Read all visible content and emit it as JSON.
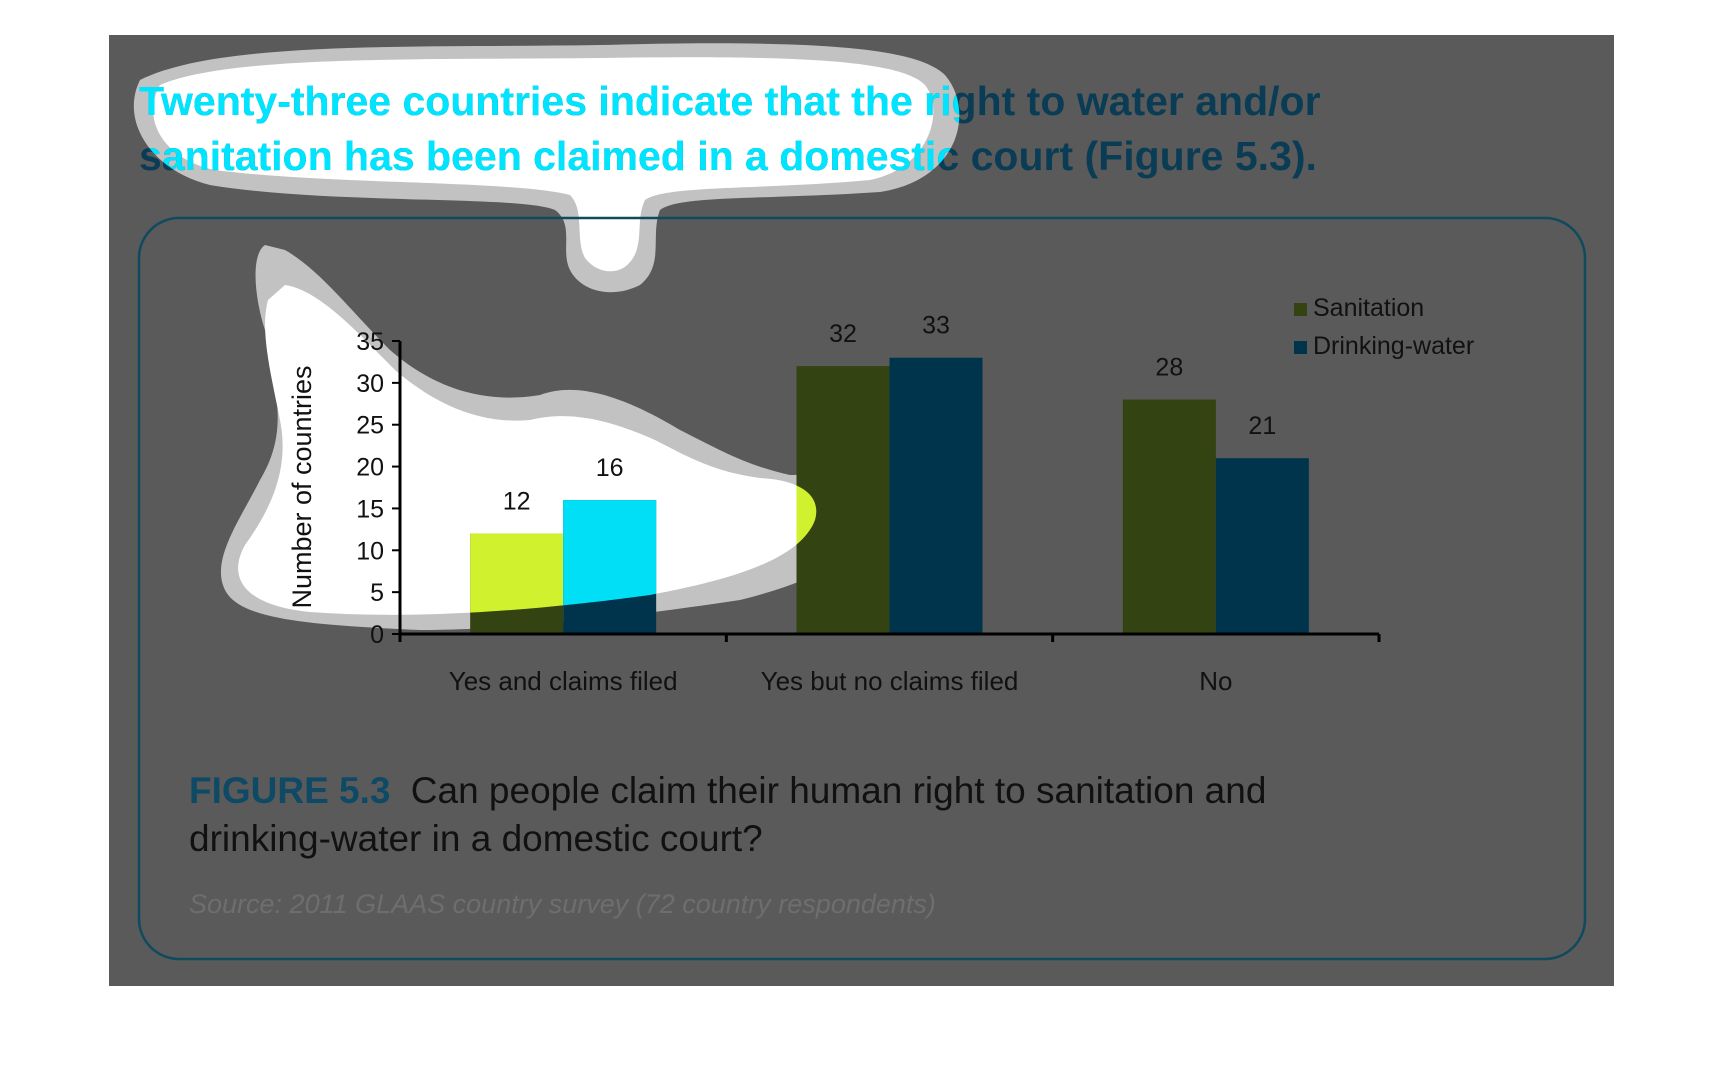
{
  "headline": {
    "line1": "Twenty-three countries indicate that the right to water and/or",
    "line2": "sanitation has been claimed in a domestic court (Figure 5.3)."
  },
  "figure": {
    "label": "FIGURE 5.3",
    "caption_line1": "Can people claim their human right to sanitation and",
    "caption_line2": "drinking-water in a domestic court?",
    "source": "Source: 2011 GLAAS country survey (72 country respondents)"
  },
  "colors": {
    "panel": "#5a5a5a",
    "frame": "#0f4a5e",
    "headline": "#0a3d55",
    "headline_highlight": "#00e5ff",
    "figure_label": "#0e4a66",
    "caption": "#111111",
    "source": "#6e6e6e",
    "sanitation": "#334311",
    "sanitation_highlight": "#d9fb2f",
    "drinking_water": "#00344d",
    "drinking_water_highlight": "#00e9ff",
    "glow_outer": "#c2c2c2",
    "glow_inner": "#ffffff"
  },
  "chart_data": {
    "type": "bar",
    "ylabel": "Number of countries",
    "ylim": [
      0,
      35
    ],
    "yticks": [
      0,
      5,
      10,
      15,
      20,
      25,
      30,
      35
    ],
    "categories": [
      "Yes and claims filed",
      "Yes but no claims filed",
      "No"
    ],
    "series": [
      {
        "name": "Sanitation",
        "values": [
          12,
          32,
          28
        ]
      },
      {
        "name": "Drinking-water",
        "values": [
          16,
          33,
          21
        ]
      }
    ],
    "legend": "top-right",
    "grid": false,
    "data_labels": true
  }
}
